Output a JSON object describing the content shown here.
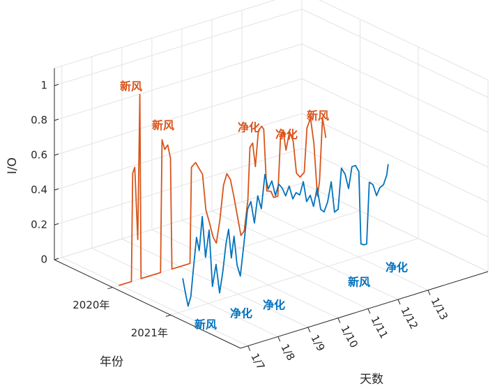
{
  "chart_data": {
    "type": "line3d",
    "xlabel": "天数",
    "ylabel": "年份",
    "zlabel": "I/O",
    "xlim": [
      6.75,
      15
    ],
    "ylim": [
      2019,
      2022.2
    ],
    "zlim": [
      0,
      1.1
    ],
    "xticks": [
      {
        "value": 7,
        "label": "1/7"
      },
      {
        "value": 8,
        "label": "1/8"
      },
      {
        "value": 9,
        "label": "1/9"
      },
      {
        "value": 10,
        "label": "1/10"
      },
      {
        "value": 11,
        "label": "1/11"
      },
      {
        "value": 12,
        "label": "1/12"
      },
      {
        "value": 13,
        "label": "1/13"
      }
    ],
    "yticks": [
      {
        "value": 2020,
        "label": "2020年"
      },
      {
        "value": 2021,
        "label": "2021年"
      }
    ],
    "zticks": [
      0,
      0.2,
      0.4,
      0.6,
      0.8,
      1
    ],
    "grid": true,
    "series": [
      {
        "year": 2020,
        "color": "#D95319",
        "x": [
          6.96,
          7.38,
          7.42,
          7.49,
          7.59,
          7.66,
          7.7,
          8.35,
          8.4,
          8.49,
          8.59,
          8.68,
          8.73,
          9.33,
          9.38,
          9.52,
          9.63,
          9.75,
          9.86,
          9.98,
          10.1,
          10.21,
          10.33,
          10.45,
          10.56,
          10.68,
          10.79,
          10.91,
          11.03,
          11.14,
          11.26,
          11.33,
          11.42,
          11.51,
          11.61,
          11.72,
          11.79,
          11.89,
          12.03,
          12.12,
          12.26,
          12.35,
          12.44,
          12.53,
          12.65,
          12.77,
          12.88,
          13.0,
          13.14,
          13.23,
          13.35,
          13.46,
          13.58,
          13.65,
          13.75,
          13.86
        ],
        "values": [
          0,
          0,
          0.62,
          0.65,
          0.23,
          1.06,
          0,
          0,
          0.76,
          0.7,
          0.72,
          0.64,
          0,
          0,
          0.55,
          0.57,
          0.53,
          0.49,
          0.28,
          0.2,
          0.11,
          0.07,
          0.2,
          0.39,
          0.45,
          0.41,
          0.31,
          0.19,
          0.07,
          0.09,
          0.26,
          0.56,
          0.58,
          0.44,
          0.64,
          0.66,
          0.64,
          0.28,
          0.27,
          0.23,
          0.23,
          0.57,
          0.59,
          0.48,
          0.58,
          0.52,
          0.33,
          0.3,
          0.32,
          0.57,
          0.62,
          0.47,
          0.16,
          0.24,
          0.6,
          0.48
        ],
        "annotations": [
          "新风",
          "新风",
          "净化",
          "净化",
          "新风"
        ]
      },
      {
        "year": 2021,
        "color": "#0072BD",
        "x": [
          7.15,
          7.24,
          7.33,
          7.42,
          7.52,
          7.61,
          7.7,
          7.8,
          7.91,
          8.03,
          8.14,
          8.26,
          8.38,
          8.49,
          8.59,
          8.68,
          8.77,
          8.86,
          8.96,
          9.07,
          9.19,
          9.31,
          9.42,
          9.54,
          9.65,
          9.77,
          9.89,
          10.0,
          10.12,
          10.24,
          10.35,
          10.47,
          10.58,
          10.7,
          10.82,
          10.93,
          11.05,
          11.17,
          11.28,
          11.4,
          11.51,
          11.63,
          11.75,
          11.86,
          11.98,
          12.1,
          12.21,
          12.33,
          12.44,
          12.56,
          12.68,
          12.79,
          12.91,
          13.02,
          13.09,
          13.19,
          13.28,
          13.37,
          13.49,
          13.61,
          13.72,
          13.84,
          13.95,
          14.0
        ],
        "values": [
          0.19,
          0.1,
          0.02,
          0.07,
          0.25,
          0.4,
          0.32,
          0.51,
          0.27,
          0.42,
          0.09,
          0.21,
          0.04,
          0.16,
          0.31,
          0.39,
          0.22,
          0.34,
          0.17,
          0.1,
          0.28,
          0.47,
          0.51,
          0.38,
          0.53,
          0.45,
          0.64,
          0.55,
          0.59,
          0.5,
          0.56,
          0.53,
          0.48,
          0.53,
          0.45,
          0.48,
          0.46,
          0.53,
          0.41,
          0.44,
          0.37,
          0.47,
          0.34,
          0.32,
          0.37,
          0.48,
          0.3,
          0.31,
          0.54,
          0.5,
          0.41,
          0.53,
          0.53,
          0.49,
          0.07,
          0.06,
          0.06,
          0.41,
          0.39,
          0.32,
          0.36,
          0.37,
          0.42,
          0.48
        ],
        "annotations": [
          "新风",
          "净化",
          "净化",
          "新风",
          "净化"
        ]
      }
    ]
  }
}
